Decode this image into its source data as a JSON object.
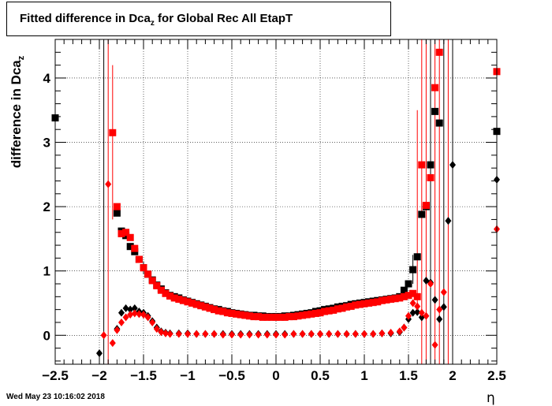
{
  "title_main": "Fitted difference in Dca",
  "title_sub": "z",
  "title_rest": " for Global Rec All EtapT",
  "ylabel_main": "difference in Dca",
  "ylabel_sub": "z",
  "xlabel": "η",
  "footer": "Wed May 23 10:16:02 2018",
  "colors": {
    "black_series": "#000000",
    "red_series": "#ff0000"
  },
  "chart_data": {
    "type": "scatter",
    "title": "Fitted difference in Dca_z for Global Rec All EtapT",
    "xlabel": "η",
    "ylabel": "difference in Dca_z",
    "xlim": [
      -2.5,
      2.5
    ],
    "ylim": [
      -0.45,
      4.6
    ],
    "xticks": [
      "−2.5",
      "−2",
      "−1.5",
      "−1",
      "−0.5",
      "0",
      "0.5",
      "1",
      "1.5",
      "2",
      "2.5"
    ],
    "yticks": [
      "0",
      "1",
      "2",
      "3",
      "4"
    ],
    "grid": true,
    "series": [
      {
        "marker": "square",
        "color": "black",
        "points": [
          [
            -2.5,
            3.38
          ],
          [
            -1.8,
            1.9
          ],
          [
            -1.75,
            1.62
          ],
          [
            -1.7,
            1.55
          ],
          [
            -1.65,
            1.38
          ],
          [
            -1.6,
            1.3
          ],
          [
            -1.55,
            1.18
          ],
          [
            -1.5,
            1.05
          ],
          [
            -1.45,
            0.95
          ],
          [
            -1.4,
            0.86
          ],
          [
            -1.35,
            0.78
          ],
          [
            -1.3,
            0.72
          ],
          [
            -1.25,
            0.66
          ],
          [
            -1.2,
            0.62
          ],
          [
            -1.15,
            0.6
          ],
          [
            -1.1,
            0.58
          ],
          [
            -1.05,
            0.55
          ],
          [
            -1.0,
            0.53
          ],
          [
            -0.95,
            0.51
          ],
          [
            -0.9,
            0.49
          ],
          [
            -0.85,
            0.47
          ],
          [
            -0.8,
            0.45
          ],
          [
            -0.75,
            0.43
          ],
          [
            -0.7,
            0.41
          ],
          [
            -0.65,
            0.4
          ],
          [
            -0.6,
            0.38
          ],
          [
            -0.55,
            0.37
          ],
          [
            -0.5,
            0.35
          ],
          [
            -0.45,
            0.34
          ],
          [
            -0.4,
            0.33
          ],
          [
            -0.35,
            0.32
          ],
          [
            -0.3,
            0.31
          ],
          [
            -0.25,
            0.31
          ],
          [
            -0.2,
            0.3
          ],
          [
            -0.15,
            0.3
          ],
          [
            -0.1,
            0.29
          ],
          [
            -0.05,
            0.29
          ],
          [
            0.0,
            0.29
          ],
          [
            0.05,
            0.29
          ],
          [
            0.1,
            0.3
          ],
          [
            0.15,
            0.3
          ],
          [
            0.2,
            0.31
          ],
          [
            0.25,
            0.32
          ],
          [
            0.3,
            0.33
          ],
          [
            0.35,
            0.34
          ],
          [
            0.4,
            0.35
          ],
          [
            0.45,
            0.37
          ],
          [
            0.5,
            0.38
          ],
          [
            0.55,
            0.4
          ],
          [
            0.6,
            0.41
          ],
          [
            0.65,
            0.42
          ],
          [
            0.7,
            0.44
          ],
          [
            0.75,
            0.45
          ],
          [
            0.8,
            0.46
          ],
          [
            0.85,
            0.48
          ],
          [
            0.9,
            0.49
          ],
          [
            0.95,
            0.5
          ],
          [
            1.0,
            0.51
          ],
          [
            1.05,
            0.52
          ],
          [
            1.1,
            0.53
          ],
          [
            1.15,
            0.54
          ],
          [
            1.2,
            0.55
          ],
          [
            1.25,
            0.56
          ],
          [
            1.3,
            0.57
          ],
          [
            1.35,
            0.58
          ],
          [
            1.4,
            0.6
          ],
          [
            1.45,
            0.7
          ],
          [
            1.5,
            0.8
          ],
          [
            1.55,
            1.02
          ],
          [
            1.6,
            1.22
          ],
          [
            1.65,
            1.88
          ],
          [
            1.7,
            2.0
          ],
          [
            1.75,
            2.65
          ],
          [
            1.8,
            3.48
          ],
          [
            1.85,
            3.3
          ],
          [
            2.5,
            3.17
          ]
        ]
      },
      {
        "marker": "diamond",
        "color": "black",
        "points": [
          [
            -2.0,
            -0.28
          ],
          [
            -1.8,
            0.1
          ],
          [
            -1.75,
            0.35
          ],
          [
            -1.7,
            0.42
          ],
          [
            -1.65,
            0.4
          ],
          [
            -1.6,
            0.42
          ],
          [
            -1.55,
            0.37
          ],
          [
            -1.5,
            0.35
          ],
          [
            -1.45,
            0.3
          ],
          [
            -1.4,
            0.22
          ],
          [
            -1.35,
            0.12
          ],
          [
            -1.3,
            0.06
          ],
          [
            -1.25,
            0.04
          ],
          [
            -1.2,
            0.03
          ],
          [
            -1.1,
            0.03
          ],
          [
            -1.0,
            0.03
          ],
          [
            -0.9,
            0.02
          ],
          [
            -0.8,
            0.02
          ],
          [
            -0.7,
            0.02
          ],
          [
            -0.6,
            0.02
          ],
          [
            -0.5,
            0.02
          ],
          [
            -0.4,
            0.02
          ],
          [
            -0.3,
            0.02
          ],
          [
            -0.2,
            0.02
          ],
          [
            -0.1,
            0.02
          ],
          [
            0.0,
            0.02
          ],
          [
            0.1,
            0.02
          ],
          [
            0.2,
            0.02
          ],
          [
            0.3,
            0.02
          ],
          [
            0.4,
            0.02
          ],
          [
            0.5,
            0.02
          ],
          [
            0.6,
            0.02
          ],
          [
            0.7,
            0.02
          ],
          [
            0.8,
            0.02
          ],
          [
            0.9,
            0.02
          ],
          [
            1.0,
            0.02
          ],
          [
            1.1,
            0.02
          ],
          [
            1.2,
            0.03
          ],
          [
            1.3,
            0.03
          ],
          [
            1.4,
            0.05
          ],
          [
            1.45,
            0.12
          ],
          [
            1.5,
            0.25
          ],
          [
            1.55,
            0.35
          ],
          [
            1.6,
            0.36
          ],
          [
            1.65,
            0.28
          ],
          [
            1.7,
            0.85
          ],
          [
            1.75,
            0.82
          ],
          [
            1.8,
            0.55
          ],
          [
            1.85,
            0.25
          ],
          [
            1.9,
            0.44
          ],
          [
            1.95,
            1.78
          ],
          [
            2.0,
            2.65
          ],
          [
            2.5,
            2.42
          ]
        ]
      },
      {
        "marker": "square",
        "color": "red",
        "points": [
          [
            -1.85,
            3.15
          ],
          [
            -1.8,
            2.0
          ],
          [
            -1.75,
            1.58
          ],
          [
            -1.7,
            1.6
          ],
          [
            -1.65,
            1.52
          ],
          [
            -1.6,
            1.35
          ],
          [
            -1.55,
            1.18
          ],
          [
            -1.5,
            1.05
          ],
          [
            -1.45,
            0.95
          ],
          [
            -1.4,
            0.85
          ],
          [
            -1.35,
            0.77
          ],
          [
            -1.3,
            0.7
          ],
          [
            -1.25,
            0.65
          ],
          [
            -1.2,
            0.61
          ],
          [
            -1.15,
            0.58
          ],
          [
            -1.1,
            0.56
          ],
          [
            -1.05,
            0.54
          ],
          [
            -1.0,
            0.52
          ],
          [
            -0.95,
            0.5
          ],
          [
            -0.9,
            0.48
          ],
          [
            -0.85,
            0.46
          ],
          [
            -0.8,
            0.44
          ],
          [
            -0.75,
            0.42
          ],
          [
            -0.7,
            0.4
          ],
          [
            -0.65,
            0.38
          ],
          [
            -0.6,
            0.37
          ],
          [
            -0.55,
            0.35
          ],
          [
            -0.5,
            0.34
          ],
          [
            -0.45,
            0.33
          ],
          [
            -0.4,
            0.32
          ],
          [
            -0.35,
            0.31
          ],
          [
            -0.3,
            0.3
          ],
          [
            -0.25,
            0.29
          ],
          [
            -0.2,
            0.29
          ],
          [
            -0.15,
            0.28
          ],
          [
            -0.1,
            0.28
          ],
          [
            -0.05,
            0.28
          ],
          [
            0.0,
            0.28
          ],
          [
            0.05,
            0.28
          ],
          [
            0.1,
            0.28
          ],
          [
            0.15,
            0.29
          ],
          [
            0.2,
            0.29
          ],
          [
            0.25,
            0.3
          ],
          [
            0.3,
            0.31
          ],
          [
            0.35,
            0.32
          ],
          [
            0.4,
            0.33
          ],
          [
            0.45,
            0.34
          ],
          [
            0.5,
            0.35
          ],
          [
            0.55,
            0.37
          ],
          [
            0.6,
            0.38
          ],
          [
            0.65,
            0.39
          ],
          [
            0.7,
            0.41
          ],
          [
            0.75,
            0.42
          ],
          [
            0.8,
            0.44
          ],
          [
            0.85,
            0.45
          ],
          [
            0.9,
            0.47
          ],
          [
            0.95,
            0.48
          ],
          [
            1.0,
            0.49
          ],
          [
            1.05,
            0.5
          ],
          [
            1.1,
            0.51
          ],
          [
            1.15,
            0.52
          ],
          [
            1.2,
            0.54
          ],
          [
            1.25,
            0.55
          ],
          [
            1.3,
            0.56
          ],
          [
            1.35,
            0.57
          ],
          [
            1.4,
            0.58
          ],
          [
            1.45,
            0.6
          ],
          [
            1.5,
            0.62
          ],
          [
            1.55,
            0.65
          ],
          [
            1.6,
            0.6
          ],
          [
            1.65,
            2.65
          ],
          [
            1.7,
            2.02
          ],
          [
            1.75,
            2.45
          ],
          [
            1.8,
            3.85
          ],
          [
            1.85,
            4.4
          ],
          [
            2.5,
            4.1
          ]
        ]
      },
      {
        "marker": "diamond",
        "color": "red",
        "points": [
          [
            -1.95,
            0.0
          ],
          [
            -1.9,
            2.35
          ],
          [
            -1.85,
            -0.12
          ],
          [
            -1.8,
            0.08
          ],
          [
            -1.75,
            0.2
          ],
          [
            -1.7,
            0.28
          ],
          [
            -1.65,
            0.32
          ],
          [
            -1.6,
            0.34
          ],
          [
            -1.55,
            0.33
          ],
          [
            -1.5,
            0.32
          ],
          [
            -1.45,
            0.28
          ],
          [
            -1.4,
            0.2
          ],
          [
            -1.35,
            0.1
          ],
          [
            -1.3,
            0.05
          ],
          [
            -1.25,
            0.03
          ],
          [
            -1.2,
            0.02
          ],
          [
            -1.1,
            0.02
          ],
          [
            -1.0,
            0.02
          ],
          [
            -0.9,
            0.02
          ],
          [
            -0.8,
            0.02
          ],
          [
            -0.7,
            0.02
          ],
          [
            -0.6,
            0.01
          ],
          [
            -0.5,
            0.01
          ],
          [
            -0.4,
            0.01
          ],
          [
            -0.3,
            0.01
          ],
          [
            -0.2,
            0.01
          ],
          [
            -0.1,
            0.01
          ],
          [
            0.0,
            0.01
          ],
          [
            0.1,
            0.01
          ],
          [
            0.2,
            0.02
          ],
          [
            0.3,
            0.02
          ],
          [
            0.4,
            0.02
          ],
          [
            0.5,
            0.02
          ],
          [
            0.6,
            0.02
          ],
          [
            0.7,
            0.02
          ],
          [
            0.8,
            0.02
          ],
          [
            0.9,
            0.02
          ],
          [
            1.0,
            0.02
          ],
          [
            1.1,
            0.02
          ],
          [
            1.2,
            0.03
          ],
          [
            1.3,
            0.04
          ],
          [
            1.4,
            0.06
          ],
          [
            1.45,
            0.12
          ],
          [
            1.5,
            0.3
          ],
          [
            1.55,
            0.5
          ],
          [
            1.6,
            0.45
          ],
          [
            1.65,
            0.35
          ],
          [
            1.7,
            0.3
          ],
          [
            1.75,
            0.8
          ],
          [
            1.8,
            -0.15
          ],
          [
            1.85,
            0.4
          ],
          [
            1.9,
            0.67
          ],
          [
            2.5,
            1.65
          ]
        ]
      }
    ],
    "error_bars": [
      {
        "x": -1.95,
        "lo": -0.45,
        "hi": 4.6,
        "color": "black"
      },
      {
        "x": -1.9,
        "lo": -0.45,
        "hi": 4.6,
        "color": "red"
      },
      {
        "x": -1.85,
        "lo": 1.8,
        "hi": 4.2,
        "color": "red"
      },
      {
        "x": 1.6,
        "lo": 0.5,
        "hi": 3.5,
        "color": "red"
      },
      {
        "x": 1.65,
        "lo": -0.45,
        "hi": 4.6,
        "color": "red"
      },
      {
        "x": 1.7,
        "lo": -0.45,
        "hi": 4.6,
        "color": "red"
      },
      {
        "x": 1.75,
        "lo": -0.45,
        "hi": 4.6,
        "color": "black"
      },
      {
        "x": 1.8,
        "lo": -0.45,
        "hi": 4.6,
        "color": "red"
      },
      {
        "x": 1.85,
        "lo": -0.45,
        "hi": 4.6,
        "color": "red"
      },
      {
        "x": 1.9,
        "lo": -0.45,
        "hi": 4.6,
        "color": "black"
      },
      {
        "x": 1.95,
        "lo": -0.45,
        "hi": 4.6,
        "color": "red"
      },
      {
        "x": 2.0,
        "lo": -0.45,
        "hi": 4.6,
        "color": "black"
      },
      {
        "x": 2.5,
        "lo": -0.45,
        "hi": 4.6,
        "color": "red"
      },
      {
        "x": -1.5,
        "lo": 0.95,
        "hi": 1.15,
        "color": "black"
      },
      {
        "x": 1.55,
        "lo": 0.8,
        "hi": 1.25,
        "color": "black"
      }
    ]
  }
}
